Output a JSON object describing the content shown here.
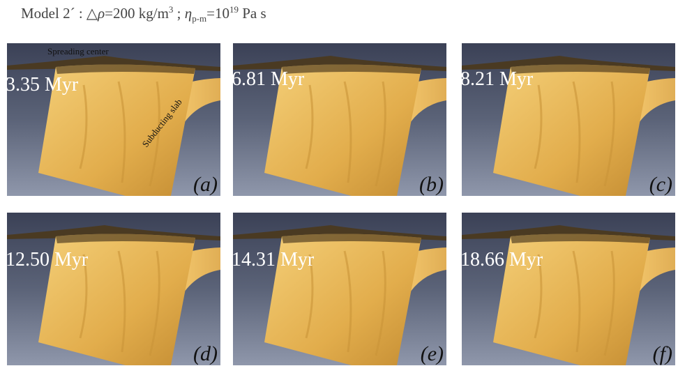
{
  "title": {
    "parts": [
      "Model 2´ : △",
      "ρ",
      "=200 kg/m",
      "3",
      " ; ",
      "η",
      "p-m",
      "=10",
      "19",
      " Pa s"
    ]
  },
  "panels": [
    {
      "time": "3.35 Myr",
      "label": "(a)",
      "annotations": [
        "Spreading center",
        "Subducting slab"
      ]
    },
    {
      "time": "6.81 Myr",
      "label": "(b)"
    },
    {
      "time": "8.21 Myr",
      "label": "(c)"
    },
    {
      "time": "12.50 Myr",
      "label": "(d)"
    },
    {
      "time": "14.31 Myr",
      "label": "(e)"
    },
    {
      "time": "18.66 Myr",
      "label": "(f)"
    }
  ]
}
